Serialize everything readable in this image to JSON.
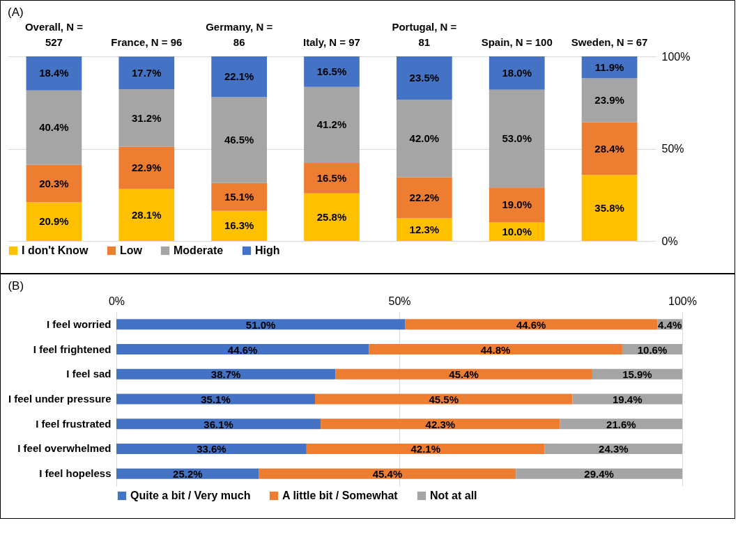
{
  "chart_data": [
    {
      "type": "bar",
      "title": "(A)",
      "stacked": true,
      "categories": [
        "Overall, N = 527",
        "France, N = 96",
        "Germany, N = 86",
        "Italy, N = 97",
        "Portugal, N = 81",
        "Spain, N = 100",
        "Sweden, N = 67"
      ],
      "series": [
        {
          "name": "I don't Know",
          "color": "#ffc000",
          "values": [
            20.9,
            28.1,
            16.3,
            25.8,
            12.3,
            10.0,
            35.8
          ],
          "value_labels": [
            "20.9%",
            "28.1%",
            "16.3%",
            "25.8%",
            "12.3%",
            "10.0%",
            "35.8%"
          ]
        },
        {
          "name": "Low",
          "color": "#ed7d31",
          "values": [
            20.3,
            22.9,
            15.1,
            16.5,
            22.2,
            19.0,
            28.4
          ],
          "value_labels": [
            "20.3%",
            "22.9%",
            "15.1%",
            "16.5%",
            "22.2%",
            "19.0%",
            "28.4%"
          ]
        },
        {
          "name": "Moderate",
          "color": "#a5a5a5",
          "values": [
            40.4,
            31.2,
            46.5,
            41.2,
            42.0,
            53.0,
            23.9
          ],
          "value_labels": [
            "40.4%",
            "31.2%",
            "46.5%",
            "41.2%",
            "42.0%",
            "53.0%",
            "23.9%"
          ]
        },
        {
          "name": "High",
          "color": "#4472c4",
          "values": [
            18.4,
            17.7,
            22.1,
            16.5,
            23.5,
            18.0,
            11.9
          ],
          "value_labels": [
            "18.4%",
            "17.7%",
            "22.1%",
            "16.5%",
            "23.5%",
            "18.0%",
            "11.9%"
          ]
        }
      ],
      "ylim": [
        0,
        100
      ],
      "yticks": [
        {
          "value": 0,
          "label": "0%"
        },
        {
          "value": 50,
          "label": "50%"
        },
        {
          "value": 100,
          "label": "100%"
        }
      ],
      "grid": "y",
      "legend": "bottom"
    },
    {
      "type": "bar",
      "title": "(B)",
      "stacked": true,
      "orientation": "horizontal",
      "categories": [
        "I feel worried",
        "I feel frightened",
        "I feel sad",
        "I feel under pressure",
        "I feel frustrated",
        "I feel overwhelmed",
        "I feel hopeless"
      ],
      "series": [
        {
          "name": "Quite a bit / Very much",
          "color": "#4472c4",
          "values": [
            51.0,
            44.6,
            38.7,
            35.1,
            36.1,
            33.6,
            25.2
          ],
          "value_labels": [
            "51.0%",
            "44.6%",
            "38.7%",
            "35.1%",
            "36.1%",
            "33.6%",
            "25.2%"
          ]
        },
        {
          "name": "A little bit / Somewhat",
          "color": "#ed7d31",
          "values": [
            44.6,
            44.8,
            45.4,
            45.5,
            42.3,
            42.1,
            45.4
          ],
          "value_labels": [
            "44.6%",
            "44.8%",
            "45.4%",
            "45.5%",
            "42.3%",
            "42.1%",
            "45.4%"
          ]
        },
        {
          "name": "Not at all",
          "color": "#a5a5a5",
          "values": [
            4.4,
            10.6,
            15.9,
            19.4,
            21.6,
            24.3,
            29.4
          ],
          "value_labels": [
            "4.4%",
            "10.6%",
            "15.9%",
            "19.4%",
            "21.6%",
            "24.3%",
            "29.4%"
          ]
        }
      ],
      "xlim": [
        0,
        100
      ],
      "xticks": [
        {
          "value": 0,
          "label": "0%"
        },
        {
          "value": 50,
          "label": "50%"
        },
        {
          "value": 100,
          "label": "100%"
        }
      ],
      "grid": "x",
      "legend": "bottom"
    }
  ]
}
